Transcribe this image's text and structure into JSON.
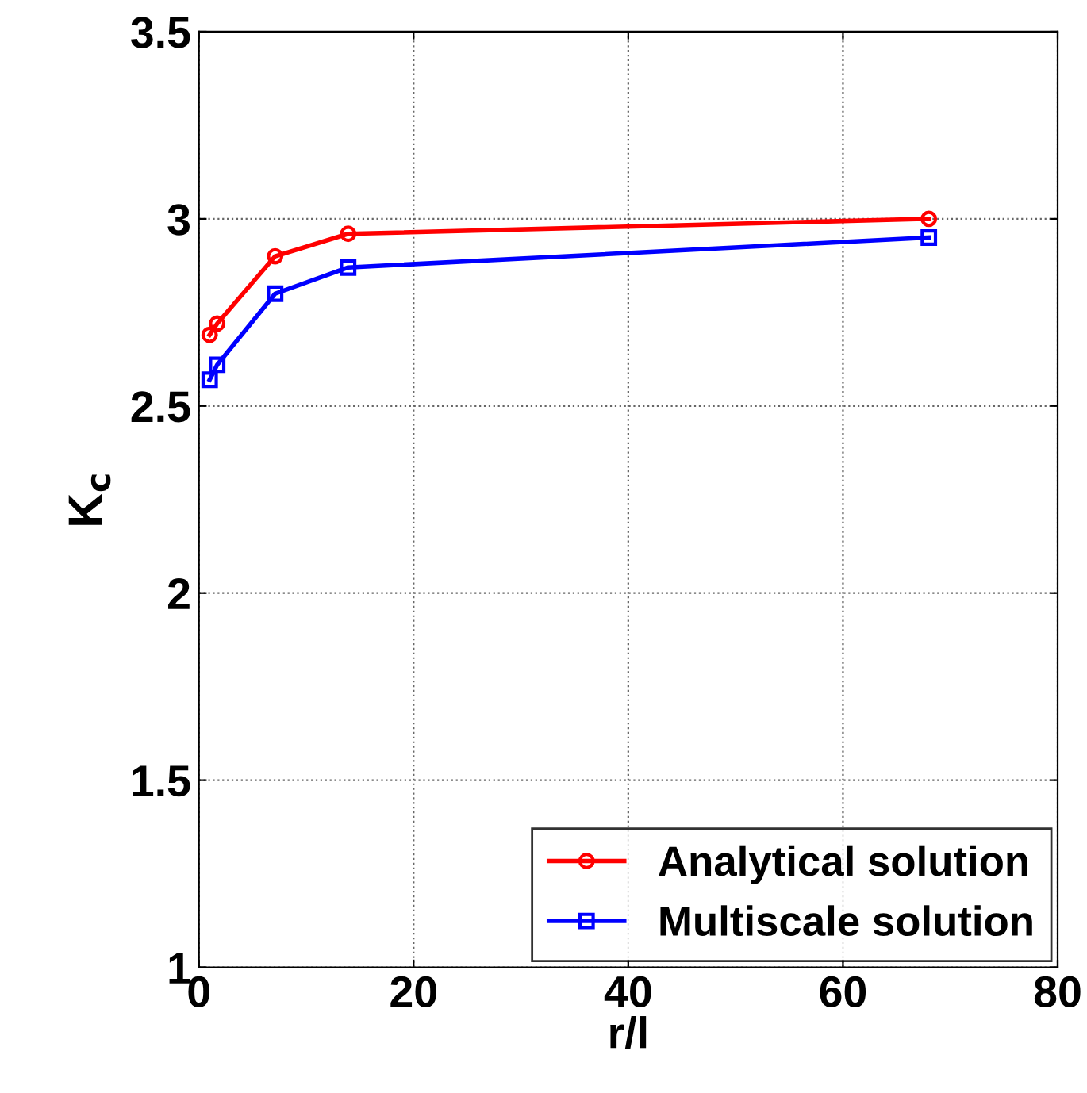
{
  "chart_data": {
    "type": "line",
    "xlabel": "r/l",
    "ylabel": "K$_{c}$",
    "x": [
      1,
      1.7,
      7.1,
      13.9,
      68
    ],
    "series": [
      {
        "name": "Analytical solution",
        "color": "#ff0000",
        "marker": "circle",
        "values": [
          2.69,
          2.72,
          2.9,
          2.96,
          3.0
        ]
      },
      {
        "name": "Multiscale solution",
        "color": "#0000ff",
        "marker": "square",
        "values": [
          2.57,
          2.61,
          2.8,
          2.87,
          2.95
        ]
      }
    ],
    "xlim": [
      0,
      80
    ],
    "xticks": [
      0,
      20,
      40,
      60,
      80
    ],
    "ylim": [
      1,
      3.5
    ],
    "yticks": [
      1,
      1.5,
      2,
      2.5,
      3,
      3.5
    ],
    "grid": true,
    "legend": "bottom right",
    "line_style": "solid"
  }
}
